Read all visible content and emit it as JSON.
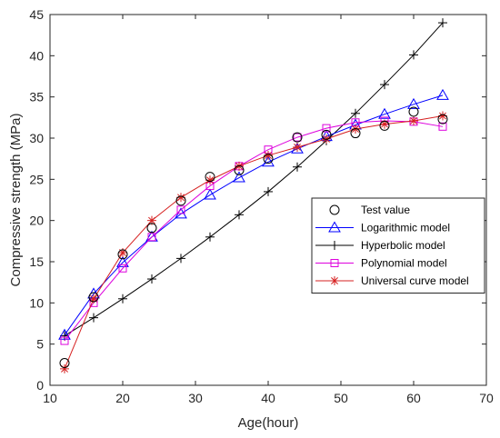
{
  "chart_data": {
    "type": "line",
    "xlabel": "Age(hour)",
    "ylabel": "Compressive strength (MPa)",
    "xlim": [
      10,
      70
    ],
    "ylim": [
      0,
      45
    ],
    "xticks": [
      10,
      20,
      30,
      40,
      50,
      60,
      70
    ],
    "yticks": [
      0,
      5,
      10,
      15,
      20,
      25,
      30,
      35,
      40,
      45
    ],
    "grid": false,
    "legend_position": "right-center",
    "series": [
      {
        "name": "Test value",
        "marker": "circle",
        "line": false,
        "color": "#000000",
        "x": [
          12,
          16,
          20,
          24,
          28,
          32,
          36,
          40,
          44,
          48,
          52,
          56,
          60,
          64
        ],
        "y": [
          2.7,
          10.7,
          15.9,
          19.1,
          22.4,
          25.3,
          26.1,
          27.5,
          30.1,
          30.4,
          30.6,
          31.5,
          33.2,
          32.3
        ]
      },
      {
        "name": "Logarithmic model",
        "marker": "triangle",
        "line": true,
        "color": "#0000ff",
        "x": [
          12,
          16,
          20,
          24,
          28,
          32,
          36,
          40,
          44,
          48,
          52,
          56,
          60,
          64
        ],
        "y": [
          6.1,
          11.1,
          14.9,
          18.0,
          20.8,
          23.1,
          25.2,
          27.1,
          28.7,
          30.2,
          31.6,
          32.9,
          34.1,
          35.2
        ]
      },
      {
        "name": "Hyperbolic model",
        "marker": "plus",
        "line": true,
        "color": "#000000",
        "x": [
          12,
          16,
          20,
          24,
          28,
          32,
          36,
          40,
          44,
          48,
          52,
          56,
          60,
          64
        ],
        "y": [
          6.0,
          8.2,
          10.5,
          12.9,
          15.4,
          18.0,
          20.7,
          23.5,
          26.5,
          29.7,
          33.0,
          36.5,
          40.1,
          44.0
        ]
      },
      {
        "name": "Polynomial model",
        "marker": "square",
        "line": true,
        "color": "#dd00dd",
        "x": [
          12,
          16,
          20,
          24,
          28,
          32,
          36,
          40,
          44,
          48,
          52,
          56,
          60,
          64
        ],
        "y": [
          5.4,
          10.0,
          14.2,
          18.0,
          21.3,
          24.2,
          26.6,
          28.6,
          30.1,
          31.2,
          31.9,
          32.1,
          32.0,
          31.4
        ]
      },
      {
        "name": "Universal curve model",
        "marker": "asterisk",
        "line": true,
        "color": "#d62020",
        "x": [
          12,
          16,
          20,
          24,
          28,
          32,
          36,
          40,
          44,
          48,
          52,
          56,
          60,
          64
        ],
        "y": [
          2.0,
          10.5,
          16.1,
          20.0,
          22.8,
          24.9,
          26.6,
          27.9,
          28.9,
          29.9,
          31.1,
          31.7,
          32.1,
          32.7
        ]
      }
    ]
  }
}
